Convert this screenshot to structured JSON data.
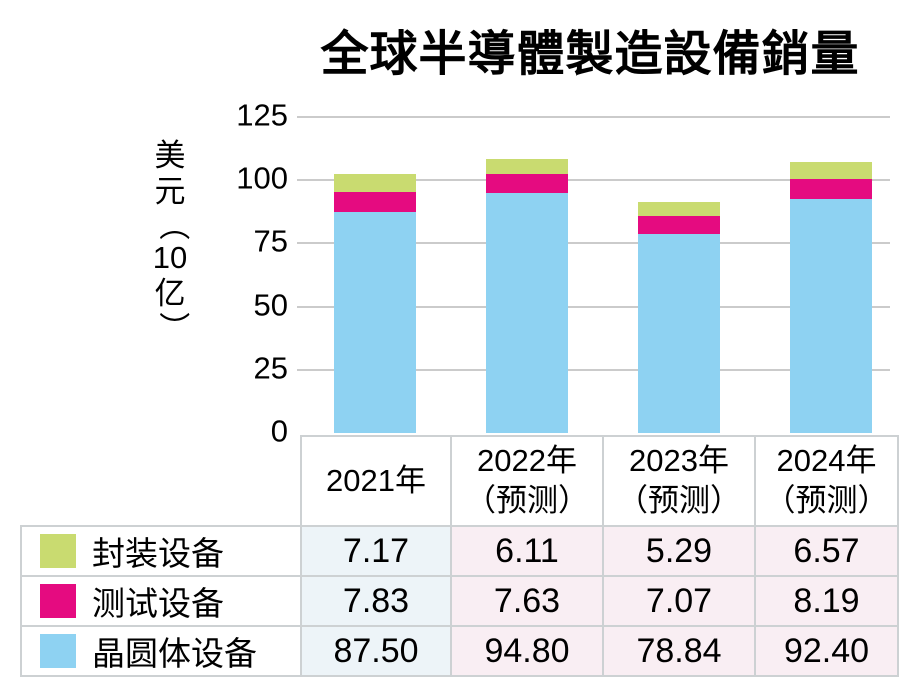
{
  "title": "全球半導體製造設備銷量",
  "y_axis": {
    "label": "美元（10亿）",
    "label_chars": {
      "c0": "美",
      "c1": "元",
      "c2": "（",
      "c3": "10",
      "c4": "亿",
      "c5": "）"
    },
    "ticks": [
      "125",
      "100",
      "75",
      "50",
      "25",
      "0"
    ]
  },
  "chart_data": {
    "type": "bar",
    "stacked": true,
    "title": "全球半導體製造設備銷量",
    "ylabel": "美元（10亿）",
    "ylim": [
      0,
      125
    ],
    "ytick_interval": 25,
    "grid": true,
    "legend_position": "table-below-left",
    "categories": [
      "2021年",
      "2022年（预测）",
      "2023年（预测）",
      "2024年（预测）"
    ],
    "series": [
      {
        "name": "封装设备",
        "color": "#c9db70",
        "values": [
          7.17,
          6.11,
          5.29,
          6.57
        ]
      },
      {
        "name": "测试设备",
        "color": "#e50b80",
        "values": [
          7.83,
          7.63,
          7.07,
          8.19
        ]
      },
      {
        "name": "晶圆体设备",
        "color": "#8ed2f2",
        "values": [
          87.5,
          94.8,
          78.84,
          92.4
        ]
      }
    ],
    "stack_order_bottom_to_top": [
      "晶圆体设备",
      "测试设备",
      "封装设备"
    ]
  },
  "table": {
    "col_headers": {
      "h0": "2021年",
      "h1": "2022年\n（预测）",
      "h2": "2023年\n（预测）",
      "h3": "2024年\n（预测）"
    },
    "rows": [
      {
        "label": "封装设备",
        "swatch": "#c9db70",
        "values": {
          "v0": "7.17",
          "v1": "6.11",
          "v2": "5.29",
          "v3": "6.57"
        }
      },
      {
        "label": "测试设备",
        "swatch": "#e50b80",
        "values": {
          "v0": "7.83",
          "v1": "7.63",
          "v2": "7.07",
          "v3": "8.19"
        }
      },
      {
        "label": "晶圆体设备",
        "swatch": "#8ed2f2",
        "values": {
          "v0": "87.50",
          "v1": "94.80",
          "v2": "78.84",
          "v3": "92.40"
        }
      }
    ]
  },
  "colors": {
    "packaging_green": "#c9db70",
    "testing_magenta": "#e50b80",
    "wafer_blue": "#8ed2f2",
    "gridline": "#cbcbcb",
    "table_border": "#cdd1d3",
    "col_2021_bg": "#edf4f8",
    "forecast_col_bg": "#f9eef3",
    "text": "#000000",
    "background": "#ffffff"
  }
}
